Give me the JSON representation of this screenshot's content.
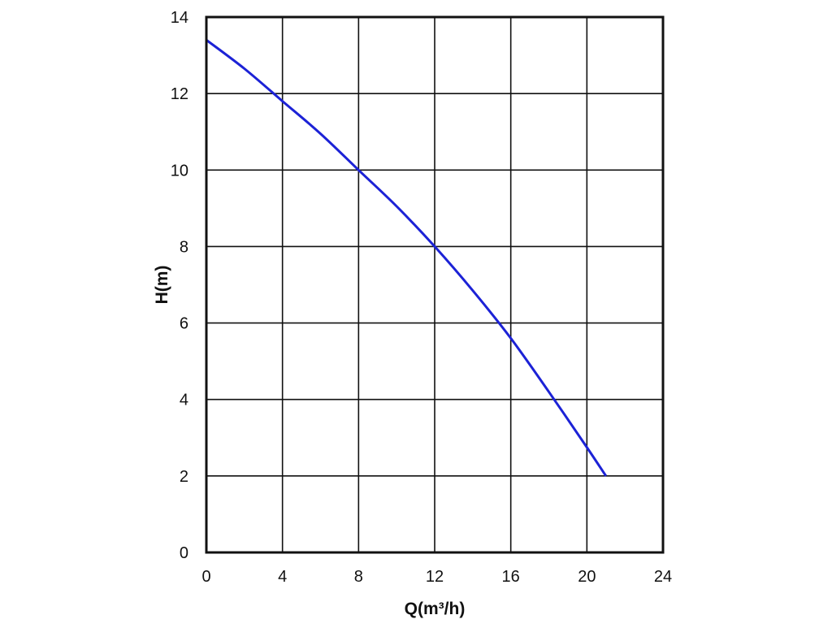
{
  "chart_data": {
    "type": "line",
    "title": "",
    "xlabel": "Q(m³/h)",
    "ylabel": "H(m)",
    "xlim": [
      0,
      24
    ],
    "ylim": [
      0,
      14
    ],
    "xticks": [
      0,
      4,
      8,
      12,
      16,
      20,
      24
    ],
    "yticks": [
      0,
      2,
      4,
      6,
      8,
      10,
      12,
      14
    ],
    "grid": true,
    "legend": "none",
    "series": [
      {
        "color": "#1c22d6",
        "x": [
          0,
          2,
          4,
          6,
          8,
          10,
          12,
          14,
          16,
          18,
          20,
          21
        ],
        "y": [
          13.4,
          12.65,
          11.8,
          10.95,
          10.0,
          9.05,
          8.0,
          6.85,
          5.6,
          4.2,
          2.75,
          2.0
        ]
      }
    ]
  }
}
